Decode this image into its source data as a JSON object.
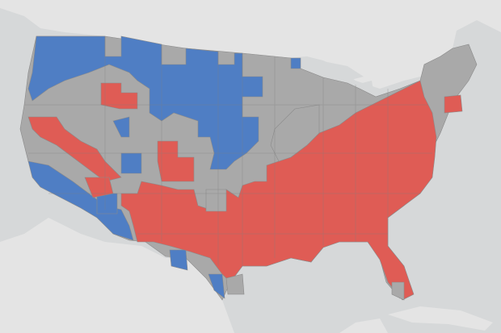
{
  "map": {
    "colors": {
      "ocean": "#d6d8d9",
      "land_outside": "#e4e4e4",
      "water_inland": "#d6d8d9",
      "neutral": "#a9a9a9",
      "above": "#df5c55",
      "below": "#4f7ec4",
      "border": "#8a8a8a"
    },
    "categories": [
      "above",
      "below",
      "neutral"
    ]
  }
}
